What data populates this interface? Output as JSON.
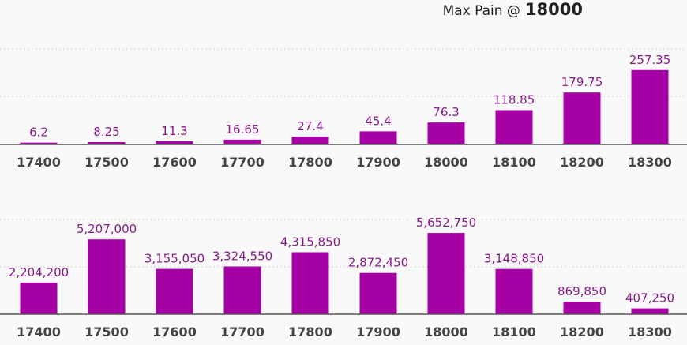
{
  "header": {
    "label": "Max Pain @",
    "value": "18000"
  },
  "style": {
    "bar_color": "#a400a4",
    "label_color": "#8a1a8a"
  },
  "chart_data": [
    {
      "type": "bar",
      "categories": [
        "17400",
        "17500",
        "17600",
        "17700",
        "17800",
        "17900",
        "18000",
        "18100",
        "18200",
        "18300"
      ],
      "values": [
        6.2,
        8.25,
        11.3,
        16.65,
        27.4,
        45.4,
        76.3,
        118.85,
        179.75,
        257.35
      ],
      "labels": [
        "6.2",
        "8.25",
        "11.3",
        "16.65",
        "27.4",
        "45.4",
        "76.3",
        "118.85",
        "179.75",
        "257.35"
      ],
      "ylim": [
        0,
        500
      ],
      "grid": true
    },
    {
      "type": "bar",
      "categories": [
        "17400",
        "17500",
        "17600",
        "17700",
        "17800",
        "17900",
        "18000",
        "18100",
        "18200",
        "18300"
      ],
      "values": [
        2204200,
        5207000,
        3155050,
        3324550,
        4315850,
        2872450,
        5652750,
        3148850,
        869850,
        407250
      ],
      "labels": [
        "2,204,200",
        "5,207,000",
        "3,155,050",
        "3,324,550",
        "4,315,850",
        "2,872,450",
        "5,652,750",
        "3,148,850",
        "869,850",
        "407,250"
      ],
      "ylim": [
        0,
        10000000
      ],
      "grid": true
    }
  ]
}
